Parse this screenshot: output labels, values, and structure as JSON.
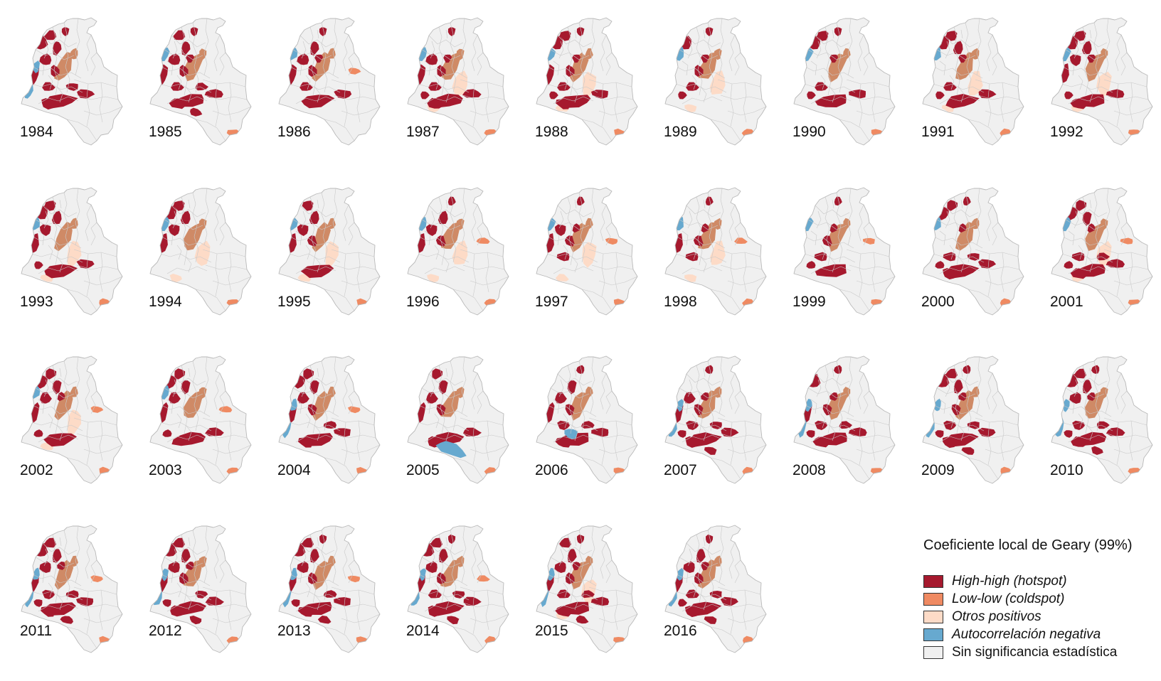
{
  "legend": {
    "title": "Coeficiente local de Geary (99%)",
    "items": [
      {
        "label": "High-high (hotspot)",
        "color": "#a6192e",
        "italic": true
      },
      {
        "label": "Low-low (coldspot)",
        "color": "#ef8a62",
        "italic": true
      },
      {
        "label": "Otros positivos",
        "color": "#fddbc7",
        "italic": true
      },
      {
        "label": "Autocorrelación negativa",
        "color": "#67a9cf",
        "italic": true
      },
      {
        "label": "Sin significancia estadística",
        "color": "#f0f0f0",
        "italic": false
      }
    ]
  },
  "map_colors": {
    "base_fill": "#f0f0f0",
    "border": "#c9c9c9",
    "hotspot": "#a6192e",
    "coldspot": "#ef8a62",
    "andean_coldspot": "#cf8a66",
    "other_positive": "#fddbc7",
    "negative": "#67a9cf"
  },
  "maps": [
    {
      "year": "1984",
      "west_hot": 0.8,
      "east_hot": 0.7,
      "neg": "pacific",
      "south_cold": false,
      "llanos_cold": false,
      "other_pos": false
    },
    {
      "year": "1985",
      "west_hot": 0.8,
      "east_hot": 0.9,
      "neg": "north",
      "south_cold": true,
      "llanos_cold": false,
      "other_pos": false
    },
    {
      "year": "1986",
      "west_hot": 0.7,
      "east_hot": 0.3,
      "neg": "north",
      "south_cold": false,
      "llanos_cold": true,
      "other_pos": false
    },
    {
      "year": "1987",
      "west_hot": 0.7,
      "east_hot": 0.5,
      "neg": "north",
      "south_cold": true,
      "llanos_cold": false,
      "other_pos": true
    },
    {
      "year": "1988",
      "west_hot": 0.8,
      "east_hot": 0.6,
      "neg": "north",
      "south_cold": true,
      "llanos_cold": false,
      "other_pos": true
    },
    {
      "year": "1989",
      "west_hot": 0.6,
      "east_hot": 0.0,
      "neg": "north",
      "south_cold": true,
      "llanos_cold": false,
      "other_pos": true
    },
    {
      "year": "1990",
      "west_hot": 0.6,
      "east_hot": 0.3,
      "neg": "north",
      "south_cold": true,
      "llanos_cold": false,
      "other_pos": false
    },
    {
      "year": "1991",
      "west_hot": 0.6,
      "east_hot": 0.4,
      "neg": "north",
      "south_cold": true,
      "llanos_cold": false,
      "other_pos": true
    },
    {
      "year": "1992",
      "west_hot": 0.7,
      "east_hot": 0.6,
      "neg": "north",
      "south_cold": true,
      "llanos_cold": false,
      "other_pos": true
    },
    {
      "year": "1993",
      "west_hot": 0.6,
      "east_hot": 0.4,
      "neg": "north",
      "south_cold": true,
      "llanos_cold": false,
      "other_pos": true
    },
    {
      "year": "1994",
      "west_hot": 0.5,
      "east_hot": 0.0,
      "neg": "north",
      "south_cold": true,
      "llanos_cold": false,
      "other_pos": true
    },
    {
      "year": "1995",
      "west_hot": 0.5,
      "east_hot": 0.2,
      "neg": "north",
      "south_cold": true,
      "llanos_cold": false,
      "other_pos": true
    },
    {
      "year": "1996",
      "west_hot": 0.5,
      "east_hot": 0.0,
      "neg": "north",
      "south_cold": true,
      "llanos_cold": true,
      "other_pos": true
    },
    {
      "year": "1997",
      "west_hot": 0.6,
      "east_hot": 0.0,
      "neg": "north",
      "south_cold": true,
      "llanos_cold": true,
      "other_pos": true
    },
    {
      "year": "1998",
      "west_hot": 0.5,
      "east_hot": 0.0,
      "neg": "north",
      "south_cold": true,
      "llanos_cold": true,
      "other_pos": true
    },
    {
      "year": "1999",
      "west_hot": 0.5,
      "east_hot": 0.2,
      "neg": "north",
      "south_cold": true,
      "llanos_cold": true,
      "other_pos": false
    },
    {
      "year": "2000",
      "west_hot": 0.6,
      "east_hot": 0.7,
      "neg": "north",
      "south_cold": true,
      "llanos_cold": false,
      "other_pos": false
    },
    {
      "year": "2001",
      "west_hot": 0.6,
      "east_hot": 0.8,
      "neg": "north",
      "south_cold": true,
      "llanos_cold": true,
      "other_pos": true
    },
    {
      "year": "2002",
      "west_hot": 0.7,
      "east_hot": 0.1,
      "neg": "north",
      "south_cold": true,
      "llanos_cold": true,
      "other_pos": true
    },
    {
      "year": "2003",
      "west_hot": 0.6,
      "east_hot": 0.4,
      "neg": "north",
      "south_cold": true,
      "llanos_cold": true,
      "other_pos": false
    },
    {
      "year": "2004",
      "west_hot": 0.6,
      "east_hot": 0.8,
      "neg": "pacific",
      "south_cold": true,
      "llanos_cold": true,
      "other_pos": false
    },
    {
      "year": "2005",
      "west_hot": 0.5,
      "east_hot": 0.6,
      "neg": "south",
      "south_cold": true,
      "llanos_cold": false,
      "other_pos": false
    },
    {
      "year": "2006",
      "west_hot": 0.6,
      "east_hot": 0.8,
      "neg": "center",
      "south_cold": true,
      "llanos_cold": false,
      "other_pos": false
    },
    {
      "year": "2007",
      "west_hot": 0.7,
      "east_hot": 0.9,
      "neg": "pacific",
      "south_cold": true,
      "llanos_cold": false,
      "other_pos": false
    },
    {
      "year": "2008",
      "west_hot": 0.7,
      "east_hot": 0.8,
      "neg": "pacific",
      "south_cold": true,
      "llanos_cold": false,
      "other_pos": false
    },
    {
      "year": "2009",
      "west_hot": 0.8,
      "east_hot": 0.9,
      "neg": "pacific",
      "south_cold": true,
      "llanos_cold": false,
      "other_pos": false
    },
    {
      "year": "2010",
      "west_hot": 0.8,
      "east_hot": 1.0,
      "neg": "pacific",
      "south_cold": true,
      "llanos_cold": false,
      "other_pos": false
    },
    {
      "year": "2011",
      "west_hot": 0.8,
      "east_hot": 0.9,
      "neg": "pacific",
      "south_cold": true,
      "llanos_cold": true,
      "other_pos": false
    },
    {
      "year": "2012",
      "west_hot": 0.8,
      "east_hot": 0.9,
      "neg": "pacific",
      "south_cold": true,
      "llanos_cold": false,
      "other_pos": false
    },
    {
      "year": "2013",
      "west_hot": 0.8,
      "east_hot": 0.9,
      "neg": "pacific",
      "south_cold": true,
      "llanos_cold": true,
      "other_pos": false
    },
    {
      "year": "2014",
      "west_hot": 0.8,
      "east_hot": 1.0,
      "neg": "pacific",
      "south_cold": true,
      "llanos_cold": true,
      "other_pos": false
    },
    {
      "year": "2015",
      "west_hot": 0.8,
      "east_hot": 0.9,
      "neg": "pacific",
      "south_cold": true,
      "llanos_cold": false,
      "other_pos": true
    },
    {
      "year": "2016",
      "west_hot": 0.8,
      "east_hot": 1.0,
      "neg": "pacific",
      "south_cold": true,
      "llanos_cold": false,
      "other_pos": false
    }
  ]
}
